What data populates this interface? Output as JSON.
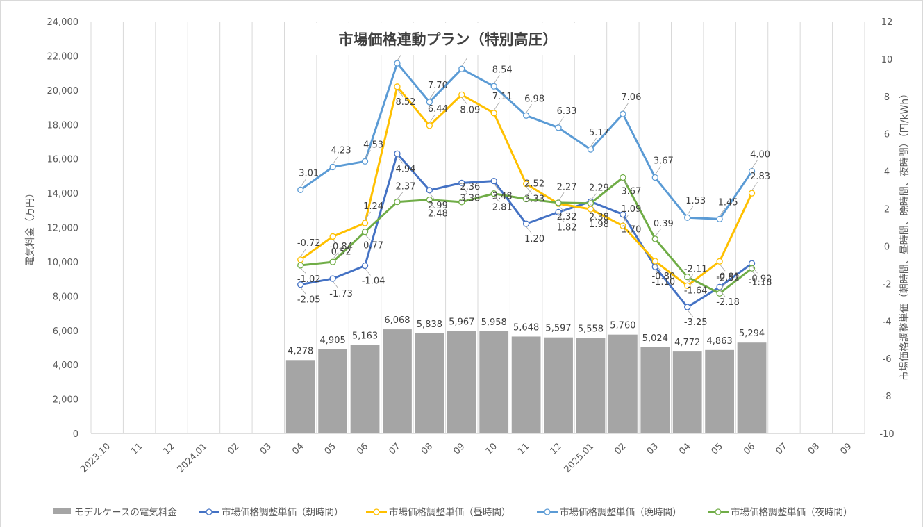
{
  "chart_data": {
    "type": "bar+line",
    "title": "市場価格連動プラン（特別高圧）",
    "ylabel_left": "電気料金（万円）",
    "ylabel_right": "市場価格調整単価（朝時間、昼時間、晩時間、夜時間）（円/kWh）",
    "categories": [
      "2023.10",
      "11",
      "12",
      "2024.01",
      "02",
      "03",
      "04",
      "05",
      "06",
      "07",
      "08",
      "09",
      "10",
      "11",
      "12",
      "2025.01",
      "02",
      "03",
      "04",
      "05",
      "06",
      "07",
      "08",
      "09"
    ],
    "ylim_left": [
      0,
      24000
    ],
    "ylim_right": [
      -10,
      12
    ],
    "yticks_left": [
      "0",
      "2,000",
      "4,000",
      "6,000",
      "8,000",
      "10,000",
      "12,000",
      "14,000",
      "16,000",
      "18,000",
      "20,000",
      "22,000",
      "24,000"
    ],
    "yticks_right": [
      "-10",
      "-8",
      "-6",
      "-4",
      "-2",
      "0",
      "2",
      "4",
      "6",
      "8",
      "10",
      "12"
    ],
    "grid": "vertical",
    "legend_position": "bottom",
    "bar_series": {
      "name": "モデルケースの電気料金",
      "color": "#a5a5a5",
      "values": [
        null,
        null,
        null,
        null,
        null,
        null,
        4278,
        4905,
        5163,
        6068,
        5838,
        5967,
        5958,
        5648,
        5597,
        5558,
        5760,
        5024,
        4772,
        4863,
        5294,
        null,
        null,
        null
      ],
      "labels": [
        "",
        "",
        "",
        "",
        "",
        "",
        "4,278",
        "4,905",
        "5,163",
        "6,068",
        "5,838",
        "5,967",
        "5,958",
        "5,648",
        "5,597",
        "5,558",
        "5,760",
        "5,024",
        "4,772",
        "4,863",
        "5,294",
        "",
        "",
        ""
      ]
    },
    "series": [
      {
        "name": "市場価格調整単価（朝時間）",
        "color": "#4472c4",
        "values": [
          null,
          null,
          null,
          null,
          null,
          null,
          -2.05,
          -1.73,
          -1.04,
          4.94,
          2.99,
          3.38,
          3.48,
          1.2,
          1.82,
          2.38,
          1.7,
          -1.1,
          -3.25,
          -2.18,
          -0.92,
          null,
          null,
          null
        ]
      },
      {
        "name": "市場価格調整単価（昼時間）",
        "color": "#ffc000",
        "values": [
          null,
          null,
          null,
          null,
          null,
          null,
          -0.72,
          0.52,
          1.24,
          8.52,
          6.44,
          8.09,
          7.11,
          3.33,
          2.27,
          1.98,
          1.09,
          -0.8,
          -2.11,
          -0.81,
          2.83,
          null,
          null,
          null
        ]
      },
      {
        "name": "市場価格調整単価（晩時間）",
        "color": "#5b9bd5",
        "values": [
          null,
          null,
          null,
          null,
          null,
          null,
          3.01,
          4.23,
          4.53,
          9.77,
          7.7,
          9.47,
          8.54,
          6.98,
          6.33,
          5.17,
          7.06,
          3.67,
          1.53,
          1.45,
          4.0,
          null,
          null,
          null
        ]
      },
      {
        "name": "市場価格調整単価（夜時間）",
        "color": "#70ad47",
        "values": [
          null,
          null,
          null,
          null,
          null,
          null,
          -1.02,
          -0.84,
          0.77,
          2.37,
          2.48,
          2.36,
          2.81,
          2.52,
          2.32,
          2.29,
          3.67,
          0.39,
          -1.64,
          -2.52,
          -1.18,
          null,
          null,
          null
        ]
      }
    ]
  }
}
